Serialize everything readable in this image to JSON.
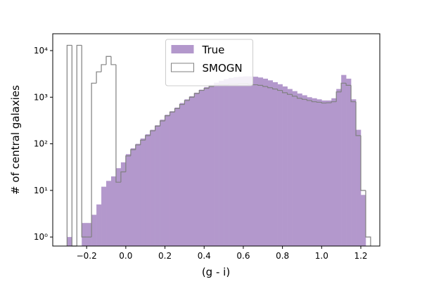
{
  "chart_data": {
    "type": "histogram",
    "x_label": "(g - i)",
    "y_label": "# of central galaxies",
    "bins": [
      -0.3,
      -0.275,
      -0.25,
      -0.225,
      -0.2,
      -0.175,
      -0.15,
      -0.125,
      -0.1,
      -0.075,
      -0.05,
      -0.025,
      0,
      0.025,
      0.05,
      0.075,
      0.1,
      0.125,
      0.15,
      0.175,
      0.2,
      0.225,
      0.25,
      0.275,
      0.3,
      0.325,
      0.35,
      0.375,
      0.4,
      0.425,
      0.45,
      0.475,
      0.5,
      0.525,
      0.55,
      0.575,
      0.6,
      0.625,
      0.65,
      0.675,
      0.7,
      0.725,
      0.75,
      0.775,
      0.8,
      0.825,
      0.85,
      0.875,
      0.9,
      0.925,
      0.95,
      0.975,
      1,
      1.025,
      1.05,
      1.075,
      1.1,
      1.125,
      1.15,
      1.175,
      1.2,
      1.225,
      1.25
    ],
    "series": [
      {
        "name": "True",
        "color": "#b398cc",
        "style": "filled",
        "values": [
          1,
          0,
          0,
          2,
          2,
          3,
          5,
          12,
          16,
          20,
          30,
          40,
          60,
          80,
          100,
          130,
          160,
          200,
          250,
          330,
          420,
          500,
          600,
          750,
          900,
          1050,
          1250,
          1450,
          1650,
          1850,
          2050,
          2250,
          2450,
          2600,
          2700,
          2750,
          2800,
          2800,
          2750,
          2650,
          2500,
          2300,
          2100,
          1900,
          1700,
          1500,
          1350,
          1200,
          1100,
          1000,
          950,
          900,
          850,
          850,
          950,
          1500,
          3000,
          2500,
          900,
          200,
          8,
          0
        ]
      },
      {
        "name": "SMOGN",
        "color": "#808080",
        "style": "step",
        "values": [
          13000,
          0,
          13000,
          1,
          1,
          2000,
          3500,
          5000,
          7500,
          5000,
          15,
          25,
          55,
          75,
          95,
          120,
          150,
          190,
          240,
          310,
          400,
          480,
          570,
          700,
          850,
          1000,
          1200,
          1400,
          1550,
          1700,
          1800,
          1850,
          1850,
          1900,
          1900,
          1950,
          1950,
          1900,
          1850,
          1800,
          1700,
          1600,
          1500,
          1400,
          1250,
          1150,
          1050,
          950,
          900,
          850,
          800,
          780,
          750,
          760,
          800,
          1300,
          2000,
          1800,
          800,
          150,
          10,
          1
        ]
      }
    ],
    "xlim": [
      -0.373,
      1.297
    ],
    "xticks": [
      {
        "value": -0.2,
        "label": "−0.2"
      },
      {
        "value": 0,
        "label": "0.0"
      },
      {
        "value": 0.2,
        "label": "0.2"
      },
      {
        "value": 0.4,
        "label": "0.4"
      },
      {
        "value": 0.6,
        "label": "0.6"
      },
      {
        "value": 0.8,
        "label": "0.8"
      },
      {
        "value": 1,
        "label": "1.0"
      },
      {
        "value": 1.2,
        "label": "1.2"
      }
    ],
    "ylim": [
      0.64,
      23000
    ],
    "log_y": true,
    "yticks": [
      {
        "value": 1,
        "label": "10⁰"
      },
      {
        "value": 10,
        "label": "10¹"
      },
      {
        "value": 100,
        "label": "10²"
      },
      {
        "value": 1000,
        "label": "10³"
      },
      {
        "value": 10000,
        "label": "10⁴"
      }
    ],
    "legend": "upper center"
  }
}
